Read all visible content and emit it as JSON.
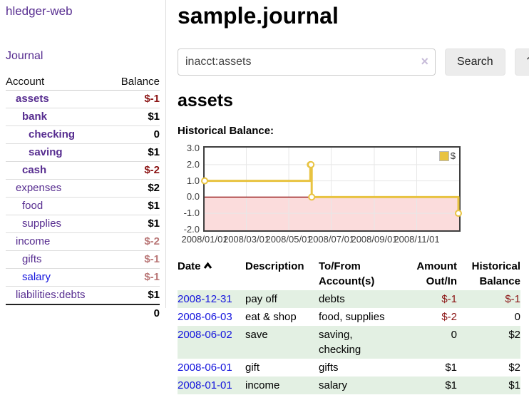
{
  "app": {
    "brand": "hledger-web",
    "nav_journal": "Journal"
  },
  "sidebar": {
    "accounts": {
      "col_account": "Account",
      "col_balance": "Balance",
      "rows": [
        {
          "name": "assets",
          "depth": 1,
          "bold": true,
          "balance": "$-1",
          "balance_style": "neg-strong"
        },
        {
          "name": "bank",
          "depth": 2,
          "bold": true,
          "balance": "$1",
          "balance_style": "pos"
        },
        {
          "name": "checking",
          "depth": 3,
          "bold": true,
          "balance": "0",
          "balance_style": "pos"
        },
        {
          "name": "saving",
          "depth": 3,
          "bold": true,
          "balance": "$1",
          "balance_style": "pos"
        },
        {
          "name": "cash",
          "depth": 2,
          "bold": true,
          "balance": "$-2",
          "balance_style": "neg-strong"
        },
        {
          "name": "expenses",
          "depth": 1,
          "bold": false,
          "balance": "$2",
          "balance_style": "pos"
        },
        {
          "name": "food",
          "depth": 2,
          "bold": false,
          "balance": "$1",
          "balance_style": "pos"
        },
        {
          "name": "supplies",
          "depth": 2,
          "bold": false,
          "balance": "$1",
          "balance_style": "pos"
        },
        {
          "name": "income",
          "depth": 1,
          "bold": false,
          "balance": "$-2",
          "balance_style": "neg-soft"
        },
        {
          "name": "gifts",
          "depth": 2,
          "bold": false,
          "balance": "$-1",
          "balance_style": "neg-soft"
        },
        {
          "name": "salary",
          "depth": 2,
          "bold": false,
          "balance": "$-1",
          "balance_style": "neg-soft",
          "link_color": "blue"
        },
        {
          "name": "liabilities:debts",
          "depth": 1,
          "bold": false,
          "balance": "$1",
          "balance_style": "pos"
        }
      ],
      "total": "0"
    }
  },
  "main": {
    "title": "sample.journal",
    "search": {
      "value": "inacct:assets",
      "clear_icon": "×",
      "search_label": "Search",
      "help_label": "?"
    },
    "account_heading": "assets",
    "chart_label": "Historical Balance:"
  },
  "chart_data": {
    "type": "line",
    "step": true,
    "title": "Historical Balance",
    "series": [
      {
        "name": "$",
        "points": [
          [
            "2008-01-01",
            1
          ],
          [
            "2008-06-01",
            2
          ],
          [
            "2008-06-02",
            2
          ],
          [
            "2008-06-03",
            0
          ],
          [
            "2008-12-31",
            -1
          ]
        ]
      }
    ],
    "xrange": [
      "2008-01-01",
      "2009-01-01"
    ],
    "ylim": [
      -2.05,
      3.05
    ],
    "yticks": [
      "3.0",
      "2.0",
      "1.0",
      "0.0",
      "-1.0",
      "-2.0"
    ],
    "xticks": [
      "2008/01/01",
      "2008/03/01",
      "2008/05/01",
      "2008/07/01",
      "2008/09/01",
      "2008/11/01"
    ],
    "legend": {
      "label": "$",
      "position": "top-right"
    },
    "grid": true,
    "negative_region_shaded": true,
    "colors": {
      "line": "#e8c341",
      "marker_fill": "#ffffff",
      "negative_fill": "#fbdcdc",
      "zero_line": "#8b0000",
      "grid": "#e7e7e7",
      "border": "#3f3f3f"
    }
  },
  "register": {
    "col_date": "Date",
    "col_description": "Description",
    "col_account": "To/From Account(s)",
    "col_amount": "Amount Out/In",
    "col_balance": "Historical Balance",
    "sort_icon": "chevron-up",
    "rows": [
      {
        "date": "2008-12-31",
        "description": "pay off",
        "accounts": "debts",
        "amount": "$-1",
        "amount_neg": true,
        "balance": "$-1",
        "balance_neg": true
      },
      {
        "date": "2008-06-03",
        "description": "eat & shop",
        "accounts": "food, supplies",
        "amount": "$-2",
        "amount_neg": true,
        "balance": "0",
        "balance_neg": false
      },
      {
        "date": "2008-06-02",
        "description": "save",
        "accounts": "saving, checking",
        "amount": "0",
        "amount_neg": false,
        "balance": "$2",
        "balance_neg": false
      },
      {
        "date": "2008-06-01",
        "description": "gift",
        "accounts": "gifts",
        "amount": "$1",
        "amount_neg": false,
        "balance": "$2",
        "balance_neg": false
      },
      {
        "date": "2008-01-01",
        "description": "income",
        "accounts": "salary",
        "amount": "$1",
        "amount_neg": false,
        "balance": "$1",
        "balance_neg": false
      }
    ]
  },
  "colors": {
    "link_purple": "#572d90",
    "link_blue": "#1414dd",
    "negative_strong": "#8b1414",
    "negative_soft": "#b97676",
    "row_green": "#e3f0e3",
    "chart_gold": "#e8c341"
  }
}
